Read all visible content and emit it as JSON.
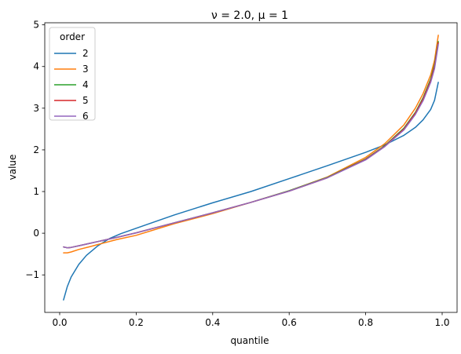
{
  "chart_data": {
    "type": "line",
    "title": "ν = 2.0, μ = 1",
    "xlabel": "quantile",
    "ylabel": "value",
    "xlim": [
      -0.039,
      1.039
    ],
    "ylim": [
      -1.9,
      5.05
    ],
    "xticks": [
      0.0,
      0.2,
      0.4,
      0.6,
      0.8,
      1.0
    ],
    "xtick_labels": [
      "0.0",
      "0.2",
      "0.4",
      "0.6",
      "0.8",
      "1.0"
    ],
    "yticks": [
      -1,
      0,
      1,
      2,
      3,
      4,
      5
    ],
    "ytick_labels": [
      "−1",
      "0",
      "1",
      "2",
      "3",
      "4",
      "5"
    ],
    "grid": false,
    "legend": {
      "title": "order",
      "placement": "top-left"
    },
    "series": [
      {
        "name": "2",
        "color": "#1f77b4",
        "x": [
          0.01,
          0.02,
          0.03,
          0.05,
          0.07,
          0.1,
          0.13,
          0.16,
          0.2,
          0.25,
          0.3,
          0.4,
          0.5,
          0.6,
          0.7,
          0.8,
          0.85,
          0.9,
          0.93,
          0.95,
          0.97,
          0.98,
          0.99
        ],
        "values": [
          -1.6,
          -1.28,
          -1.05,
          -0.75,
          -0.53,
          -0.3,
          -0.13,
          -0.01,
          0.12,
          0.28,
          0.44,
          0.73,
          1.0,
          1.31,
          1.62,
          1.94,
          2.12,
          2.35,
          2.54,
          2.72,
          2.97,
          3.19,
          3.62
        ]
      },
      {
        "name": "3",
        "color": "#ff7f0e",
        "x": [
          0.01,
          0.02,
          0.03,
          0.05,
          0.08,
          0.1,
          0.15,
          0.2,
          0.3,
          0.4,
          0.5,
          0.6,
          0.7,
          0.8,
          0.85,
          0.9,
          0.93,
          0.95,
          0.97,
          0.98,
          0.99
        ],
        "values": [
          -0.47,
          -0.47,
          -0.45,
          -0.39,
          -0.32,
          -0.27,
          -0.15,
          -0.05,
          0.23,
          0.47,
          0.74,
          1.02,
          1.35,
          1.82,
          2.15,
          2.6,
          3.0,
          3.35,
          3.8,
          4.15,
          4.75
        ]
      },
      {
        "name": "4",
        "color": "#2ca02c",
        "x": [
          0.01,
          0.02,
          0.03,
          0.05,
          0.08,
          0.1,
          0.15,
          0.2,
          0.3,
          0.4,
          0.5,
          0.6,
          0.7,
          0.8,
          0.85,
          0.9,
          0.93,
          0.95,
          0.97,
          0.98,
          0.99
        ],
        "values": [
          -0.33,
          -0.35,
          -0.34,
          -0.3,
          -0.24,
          -0.2,
          -0.1,
          0.01,
          0.25,
          0.49,
          0.74,
          1.02,
          1.34,
          1.78,
          2.1,
          2.52,
          2.9,
          3.25,
          3.7,
          4.05,
          4.6
        ]
      },
      {
        "name": "5",
        "color": "#d62728",
        "x": [
          0.01,
          0.02,
          0.03,
          0.05,
          0.08,
          0.1,
          0.15,
          0.2,
          0.3,
          0.4,
          0.5,
          0.6,
          0.7,
          0.8,
          0.85,
          0.9,
          0.93,
          0.95,
          0.97,
          0.98,
          0.99
        ],
        "values": [
          -0.33,
          -0.35,
          -0.34,
          -0.3,
          -0.24,
          -0.2,
          -0.1,
          0.01,
          0.25,
          0.49,
          0.74,
          1.01,
          1.33,
          1.77,
          2.09,
          2.5,
          2.88,
          3.22,
          3.66,
          4.0,
          4.57
        ]
      },
      {
        "name": "6",
        "color": "#9467bd",
        "x": [
          0.01,
          0.02,
          0.03,
          0.05,
          0.08,
          0.1,
          0.15,
          0.2,
          0.3,
          0.4,
          0.5,
          0.6,
          0.7,
          0.8,
          0.85,
          0.9,
          0.93,
          0.95,
          0.97,
          0.98,
          0.99
        ],
        "values": [
          -0.33,
          -0.35,
          -0.34,
          -0.3,
          -0.24,
          -0.2,
          -0.1,
          0.01,
          0.25,
          0.49,
          0.74,
          1.01,
          1.33,
          1.76,
          2.08,
          2.48,
          2.85,
          3.18,
          3.62,
          3.95,
          4.53
        ]
      }
    ]
  }
}
